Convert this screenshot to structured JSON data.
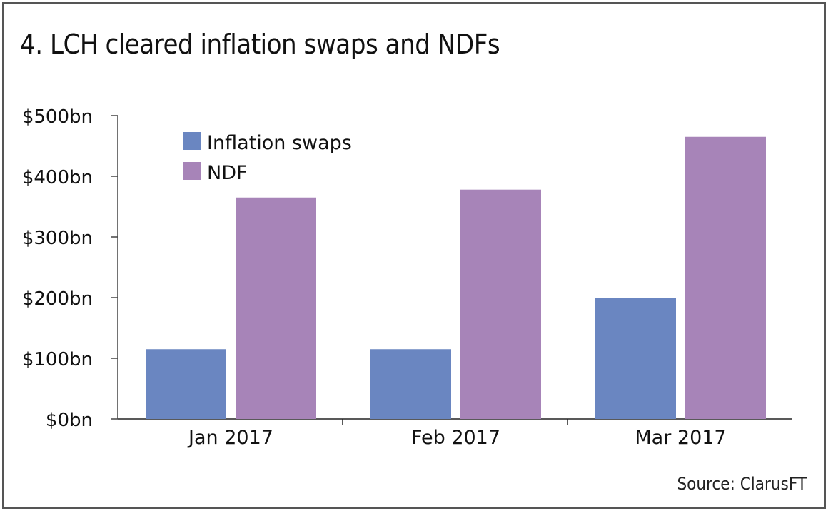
{
  "title": "4. LCH cleared inflation swaps and NDFs",
  "source": "Source: ClarusFT",
  "chart_data": {
    "type": "bar",
    "title": "4. LCH cleared inflation swaps and NDFs",
    "categories": [
      "Jan 2017",
      "Feb 2017",
      "Mar 2017"
    ],
    "series": [
      {
        "name": "Inflation swaps",
        "values": [
          115,
          115,
          200
        ],
        "color": "#6a86c1"
      },
      {
        "name": "NDF",
        "values": [
          365,
          378,
          465
        ],
        "color": "#a784b8"
      }
    ],
    "unit": "$bn",
    "ylim": [
      0,
      500
    ],
    "yticks": [
      0,
      100,
      200,
      300,
      400,
      500
    ],
    "ytick_labels": [
      "$0bn",
      "$100bn",
      "$200bn",
      "$300bn",
      "$400bn",
      "$500bn"
    ],
    "grid": false,
    "legend_position": "top-left"
  }
}
